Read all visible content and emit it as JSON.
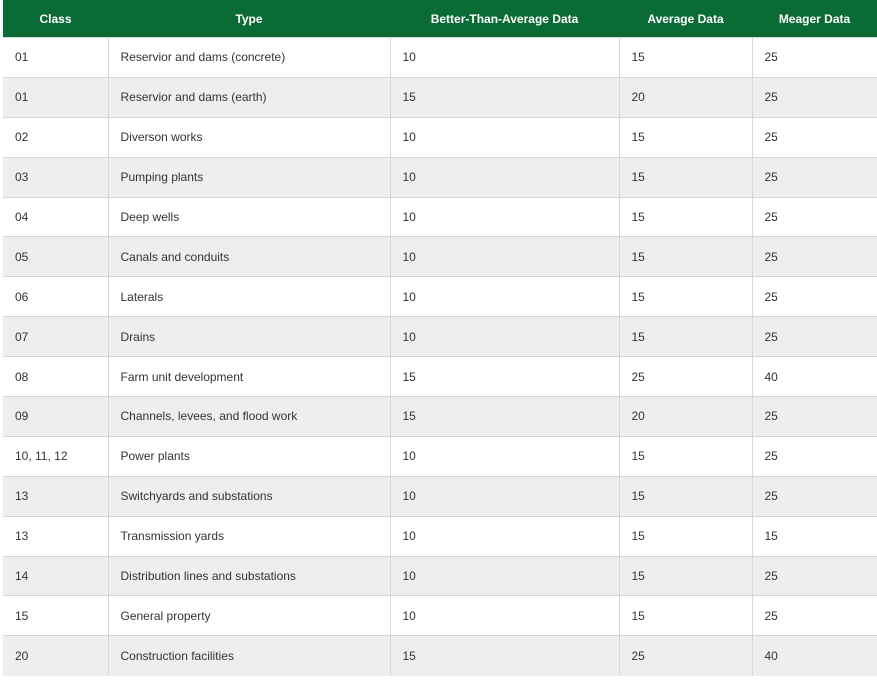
{
  "table": {
    "columns": [
      "Class",
      "Type",
      "Better-Than-Average Data",
      "Average Data",
      "Meager Data"
    ],
    "rows": [
      [
        "01",
        "Reservior and dams (concrete)",
        10,
        15,
        25
      ],
      [
        "01",
        "Reservior and dams (earth)",
        15,
        20,
        25
      ],
      [
        "02",
        "Diverson works",
        10,
        15,
        25
      ],
      [
        "03",
        "Pumping plants",
        10,
        15,
        25
      ],
      [
        "04",
        "Deep wells",
        10,
        15,
        25
      ],
      [
        "05",
        "Canals and conduits",
        10,
        15,
        25
      ],
      [
        "06",
        "Laterals",
        10,
        15,
        25
      ],
      [
        "07",
        "Drains",
        10,
        15,
        25
      ],
      [
        "08",
        "Farm unit development",
        15,
        25,
        40
      ],
      [
        "09",
        "Channels, levees, and flood work",
        15,
        20,
        25
      ],
      [
        "10, 11, 12",
        "Power plants",
        10,
        15,
        25
      ],
      [
        "13",
        "Switchyards and substations",
        10,
        15,
        25
      ],
      [
        "13",
        "Transmission yards",
        10,
        15,
        15
      ],
      [
        "14",
        "Distribution lines and substations",
        10,
        15,
        25
      ],
      [
        "15",
        "General property",
        10,
        15,
        25
      ],
      [
        "20",
        "Construction facilities",
        15,
        25,
        40
      ]
    ]
  }
}
